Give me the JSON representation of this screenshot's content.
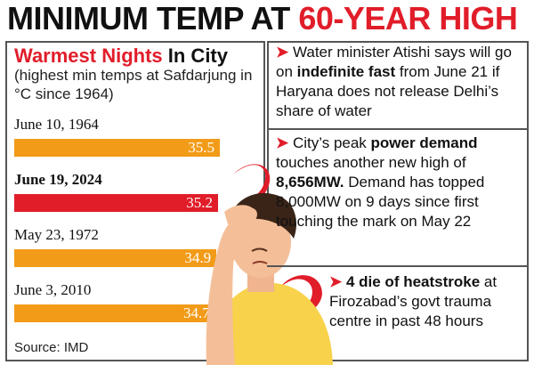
{
  "headline": {
    "prefix": "MINIMUM TEMP AT ",
    "accent": "60-YEAR HIGH"
  },
  "colors": {
    "accent_red": "#e11d2a",
    "bar_orange": "#f29b18",
    "bar_red": "#e11d2a",
    "border": "#555555"
  },
  "chart_data": {
    "type": "bar",
    "orientation": "horizontal",
    "title_accent": "Warmest Nights",
    "title_rest": " In City",
    "note": "(highest min temps at Safdarjung in °C since 1964)",
    "categories": [
      "June 10, 1964",
      "June 19, 2024",
      "May 23, 1972",
      "June 3, 2010"
    ],
    "values": [
      35.5,
      35.2,
      34.9,
      34.7
    ],
    "value_labels": [
      "35.5",
      "35.2",
      "34.9",
      "34.7"
    ],
    "highlight_index": 1,
    "source": "Source: IMD"
  },
  "facts": [
    {
      "parts": [
        {
          "t": "Water minister Atishi says will go on "
        },
        {
          "t": "indefinite fast",
          "b": true
        },
        {
          "t": " from June 21 if Haryana does not release Delhi’s share of water"
        }
      ]
    },
    {
      "parts": [
        {
          "t": "City’s peak "
        },
        {
          "t": "power demand",
          "b": true
        },
        {
          "t": " touches another new high of "
        },
        {
          "t": "8,656MW.",
          "b": true
        },
        {
          "t": " Demand has topped 8,000MW on 9 days since first touching the mark on May 22"
        }
      ]
    },
    {
      "parts": [
        {
          "t": "4 die of heatstroke",
          "b": true
        },
        {
          "t": " at Firozabad’s govt trauma centre in past 48 hours"
        }
      ]
    }
  ]
}
